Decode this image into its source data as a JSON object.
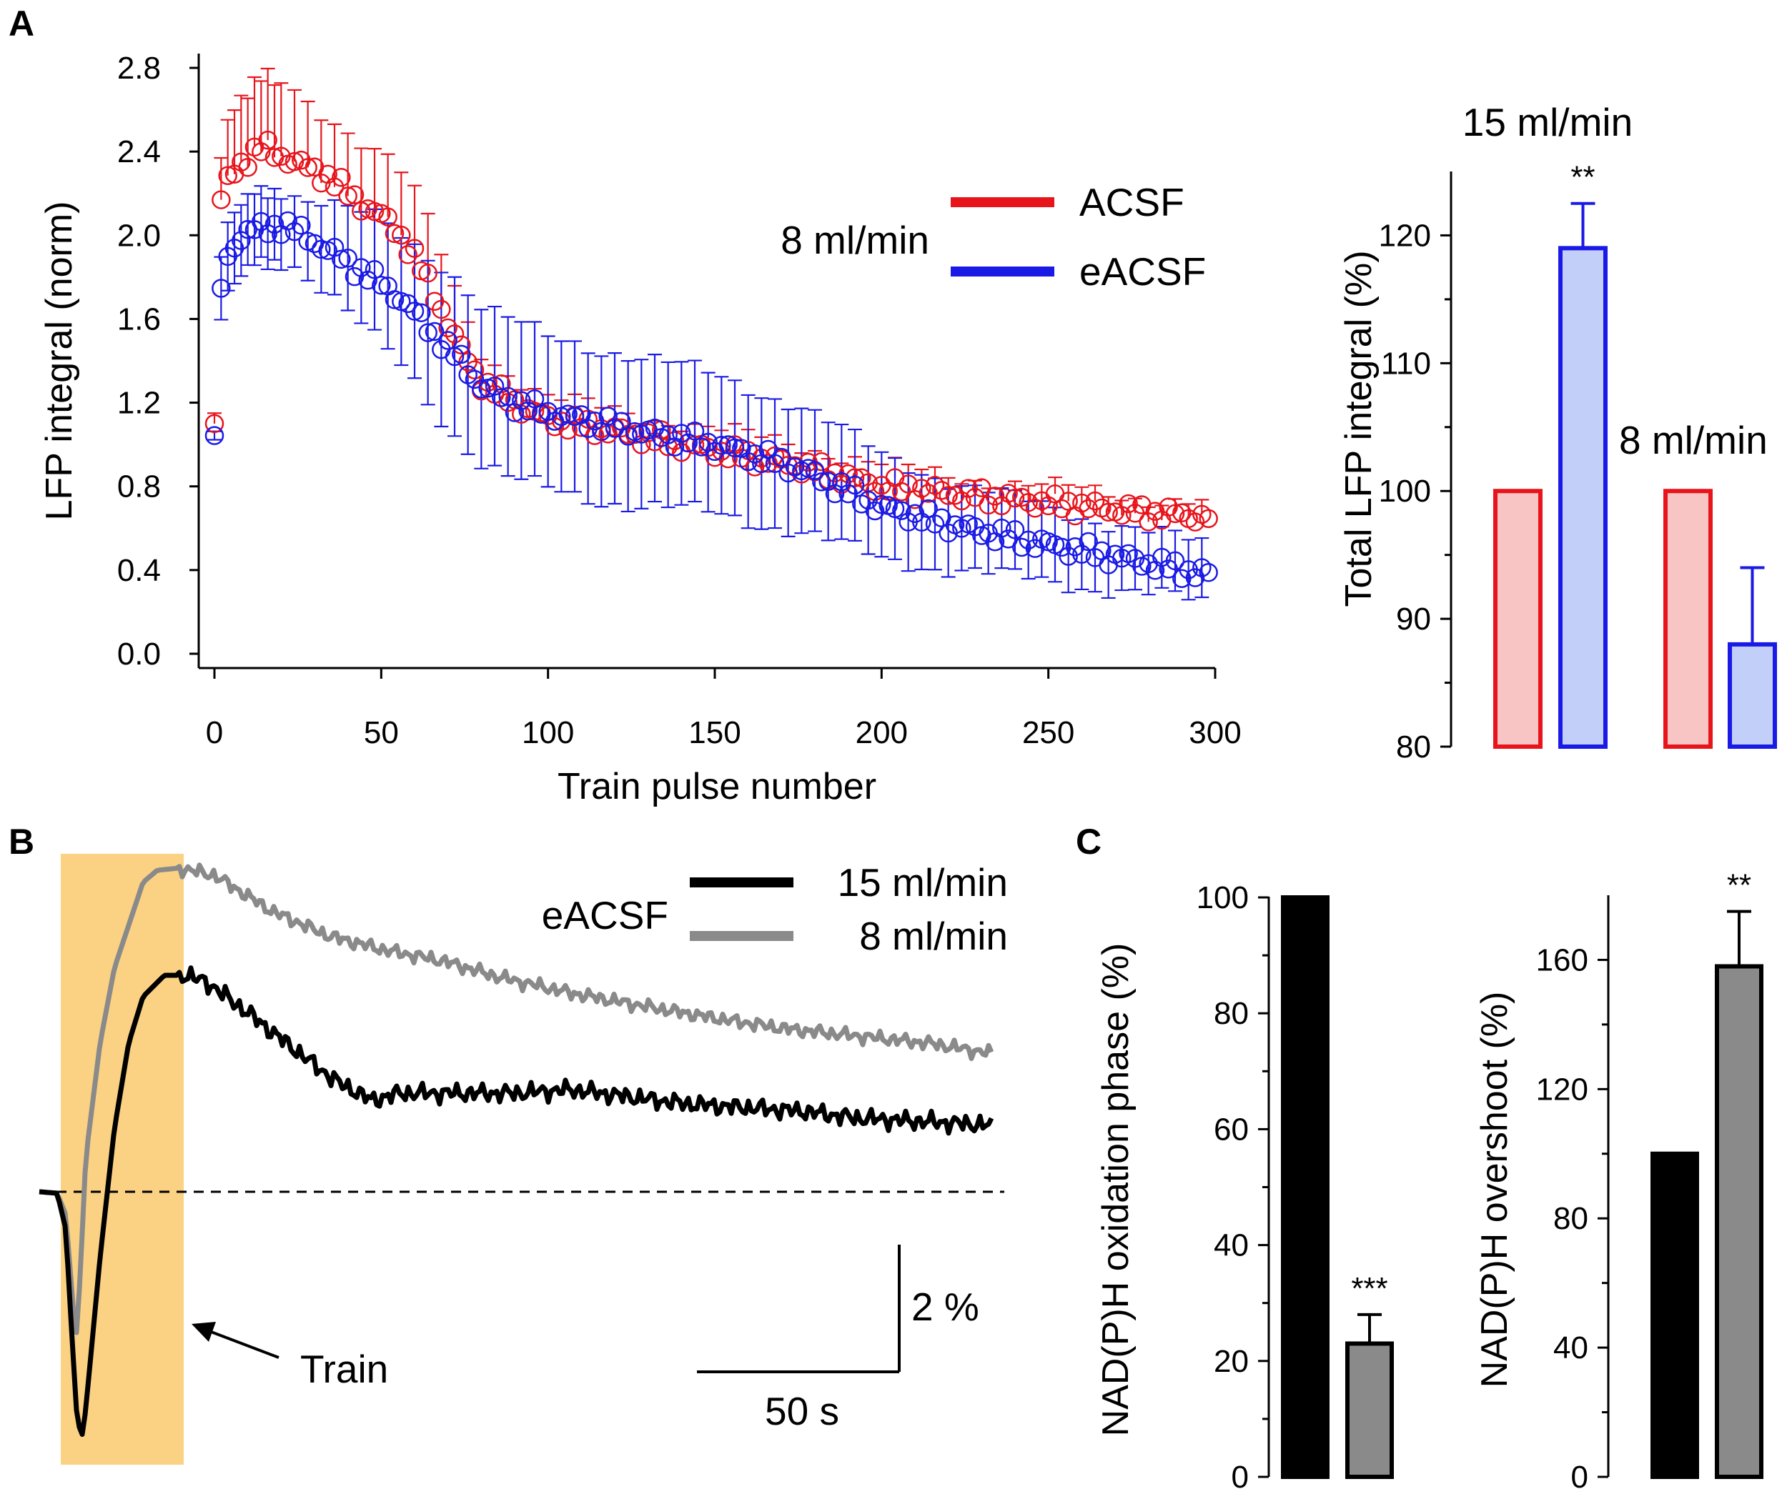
{
  "chart_data": [
    {
      "panel": "A",
      "type": "scatter",
      "title": "",
      "xlabel": "Train pulse number",
      "ylabel": "LFP integral (norm)",
      "xlim": [
        0,
        300
      ],
      "ylim": [
        0,
        2.8
      ],
      "xticks": [
        "0",
        "50",
        "100",
        "150",
        "200",
        "250",
        "300"
      ],
      "yticks": [
        "0.0",
        "0.4",
        "0.8",
        "1.2",
        "1.6",
        "2.0",
        "2.4",
        "2.8"
      ],
      "legend_group_label": "8 ml/min",
      "series": [
        {
          "name": "ACSF",
          "color": "#e8141c",
          "x": [
            0,
            2,
            5,
            10,
            15,
            20,
            25,
            30,
            35,
            40,
            45,
            50,
            55,
            60,
            65,
            70,
            75,
            80,
            90,
            100,
            125,
            150,
            175,
            200,
            225,
            250,
            275,
            300
          ],
          "y": [
            1.1,
            2.16,
            2.3,
            2.37,
            2.42,
            2.38,
            2.34,
            2.31,
            2.27,
            2.2,
            2.14,
            2.09,
            2.02,
            1.9,
            1.75,
            1.58,
            1.42,
            1.3,
            1.2,
            1.12,
            1.05,
            0.97,
            0.9,
            0.8,
            0.76,
            0.72,
            0.68,
            0.65
          ],
          "err": [
            0.05,
            0.2,
            0.3,
            0.33,
            0.34,
            0.35,
            0.34,
            0.3,
            0.3,
            0.3,
            0.3,
            0.3,
            0.3,
            0.3,
            0.28,
            0.25,
            0.2,
            0.15,
            0.12,
            0.1,
            0.1,
            0.1,
            0.1,
            0.1,
            0.08,
            0.08,
            0.07,
            0.07
          ]
        },
        {
          "name": "eACSF",
          "color": "#1a1ae6",
          "x": [
            0,
            2,
            5,
            10,
            15,
            20,
            25,
            30,
            35,
            40,
            45,
            50,
            55,
            60,
            65,
            70,
            75,
            80,
            90,
            100,
            125,
            150,
            175,
            200,
            225,
            250,
            275,
            300
          ],
          "y": [
            1.0,
            1.75,
            1.95,
            2.02,
            2.03,
            2.05,
            2.02,
            1.97,
            1.92,
            1.87,
            1.82,
            1.77,
            1.71,
            1.63,
            1.55,
            1.46,
            1.38,
            1.28,
            1.2,
            1.15,
            1.07,
            1.0,
            0.89,
            0.7,
            0.6,
            0.52,
            0.45,
            0.37
          ],
          "err": [
            0.02,
            0.15,
            0.17,
            0.17,
            0.17,
            0.17,
            0.17,
            0.2,
            0.22,
            0.25,
            0.27,
            0.3,
            0.3,
            0.32,
            0.35,
            0.38,
            0.38,
            0.38,
            0.38,
            0.36,
            0.36,
            0.33,
            0.3,
            0.25,
            0.2,
            0.18,
            0.15,
            0.14
          ]
        }
      ]
    },
    {
      "panel": "A-right",
      "type": "bar",
      "ylabel": "Total LFP integral (%)",
      "ylim": [
        80,
        125
      ],
      "yticks": [
        "80",
        "90",
        "100",
        "110",
        "120"
      ],
      "group_labels": [
        "15 ml/min",
        "8 ml/min"
      ],
      "bars": [
        {
          "group": "15 ml/min",
          "series": "ACSF",
          "value": 100,
          "err": 0,
          "edge": "#e8141c",
          "fill": "#f8c4c4"
        },
        {
          "group": "15 ml/min",
          "series": "eACSF",
          "value": 119,
          "err": 3.5,
          "edge": "#1a1ae6",
          "fill": "#c2cff8"
        },
        {
          "group": "8 ml/min",
          "series": "ACSF",
          "value": 100,
          "err": 0,
          "edge": "#e8141c",
          "fill": "#f8c4c4"
        },
        {
          "group": "8 ml/min",
          "series": "eACSF",
          "value": 88,
          "err": 6,
          "edge": "#1a1ae6",
          "fill": "#c2cff8"
        }
      ],
      "annotations": [
        {
          "bar": 1,
          "text": "**"
        }
      ]
    },
    {
      "panel": "B",
      "type": "line",
      "legend_group_label": "eACSF",
      "series": [
        {
          "name": "15 ml/min",
          "color": "#000000"
        },
        {
          "name": "8 ml/min",
          "color": "#8a8a8a"
        }
      ],
      "shaded_region_label": "Train",
      "shaded_region_color": "#fbd284",
      "scale_bar": {
        "y_label": "2 %",
        "x_label": "50 s"
      }
    },
    {
      "panel": "C",
      "type": "bar",
      "ylabel": "NAD(P)H oxidation phase (%)",
      "ylim": [
        0,
        100
      ],
      "yticks": [
        "0",
        "20",
        "40",
        "60",
        "80",
        "100"
      ],
      "bars": [
        {
          "series": "15 ml/min",
          "value": 100,
          "err": 0,
          "fill": "#000000"
        },
        {
          "series": "8 ml/min",
          "value": 23,
          "err": 5,
          "fill": "#8a8a8a"
        }
      ],
      "annotations": [
        {
          "bar": 1,
          "text": "***"
        }
      ]
    },
    {
      "panel": "C-right",
      "type": "bar",
      "ylabel": "NAD(P)H overshoot (%)",
      "ylim": [
        0,
        180
      ],
      "yticks": [
        "0",
        "40",
        "80",
        "120",
        "160"
      ],
      "bars": [
        {
          "series": "15 ml/min",
          "value": 100,
          "err": 0,
          "fill": "#000000"
        },
        {
          "series": "8 ml/min",
          "value": 158,
          "err": 17,
          "fill": "#8a8a8a"
        }
      ],
      "annotations": [
        {
          "bar": 1,
          "text": "**"
        }
      ]
    }
  ],
  "panel_letters": [
    "A",
    "B",
    "C"
  ]
}
